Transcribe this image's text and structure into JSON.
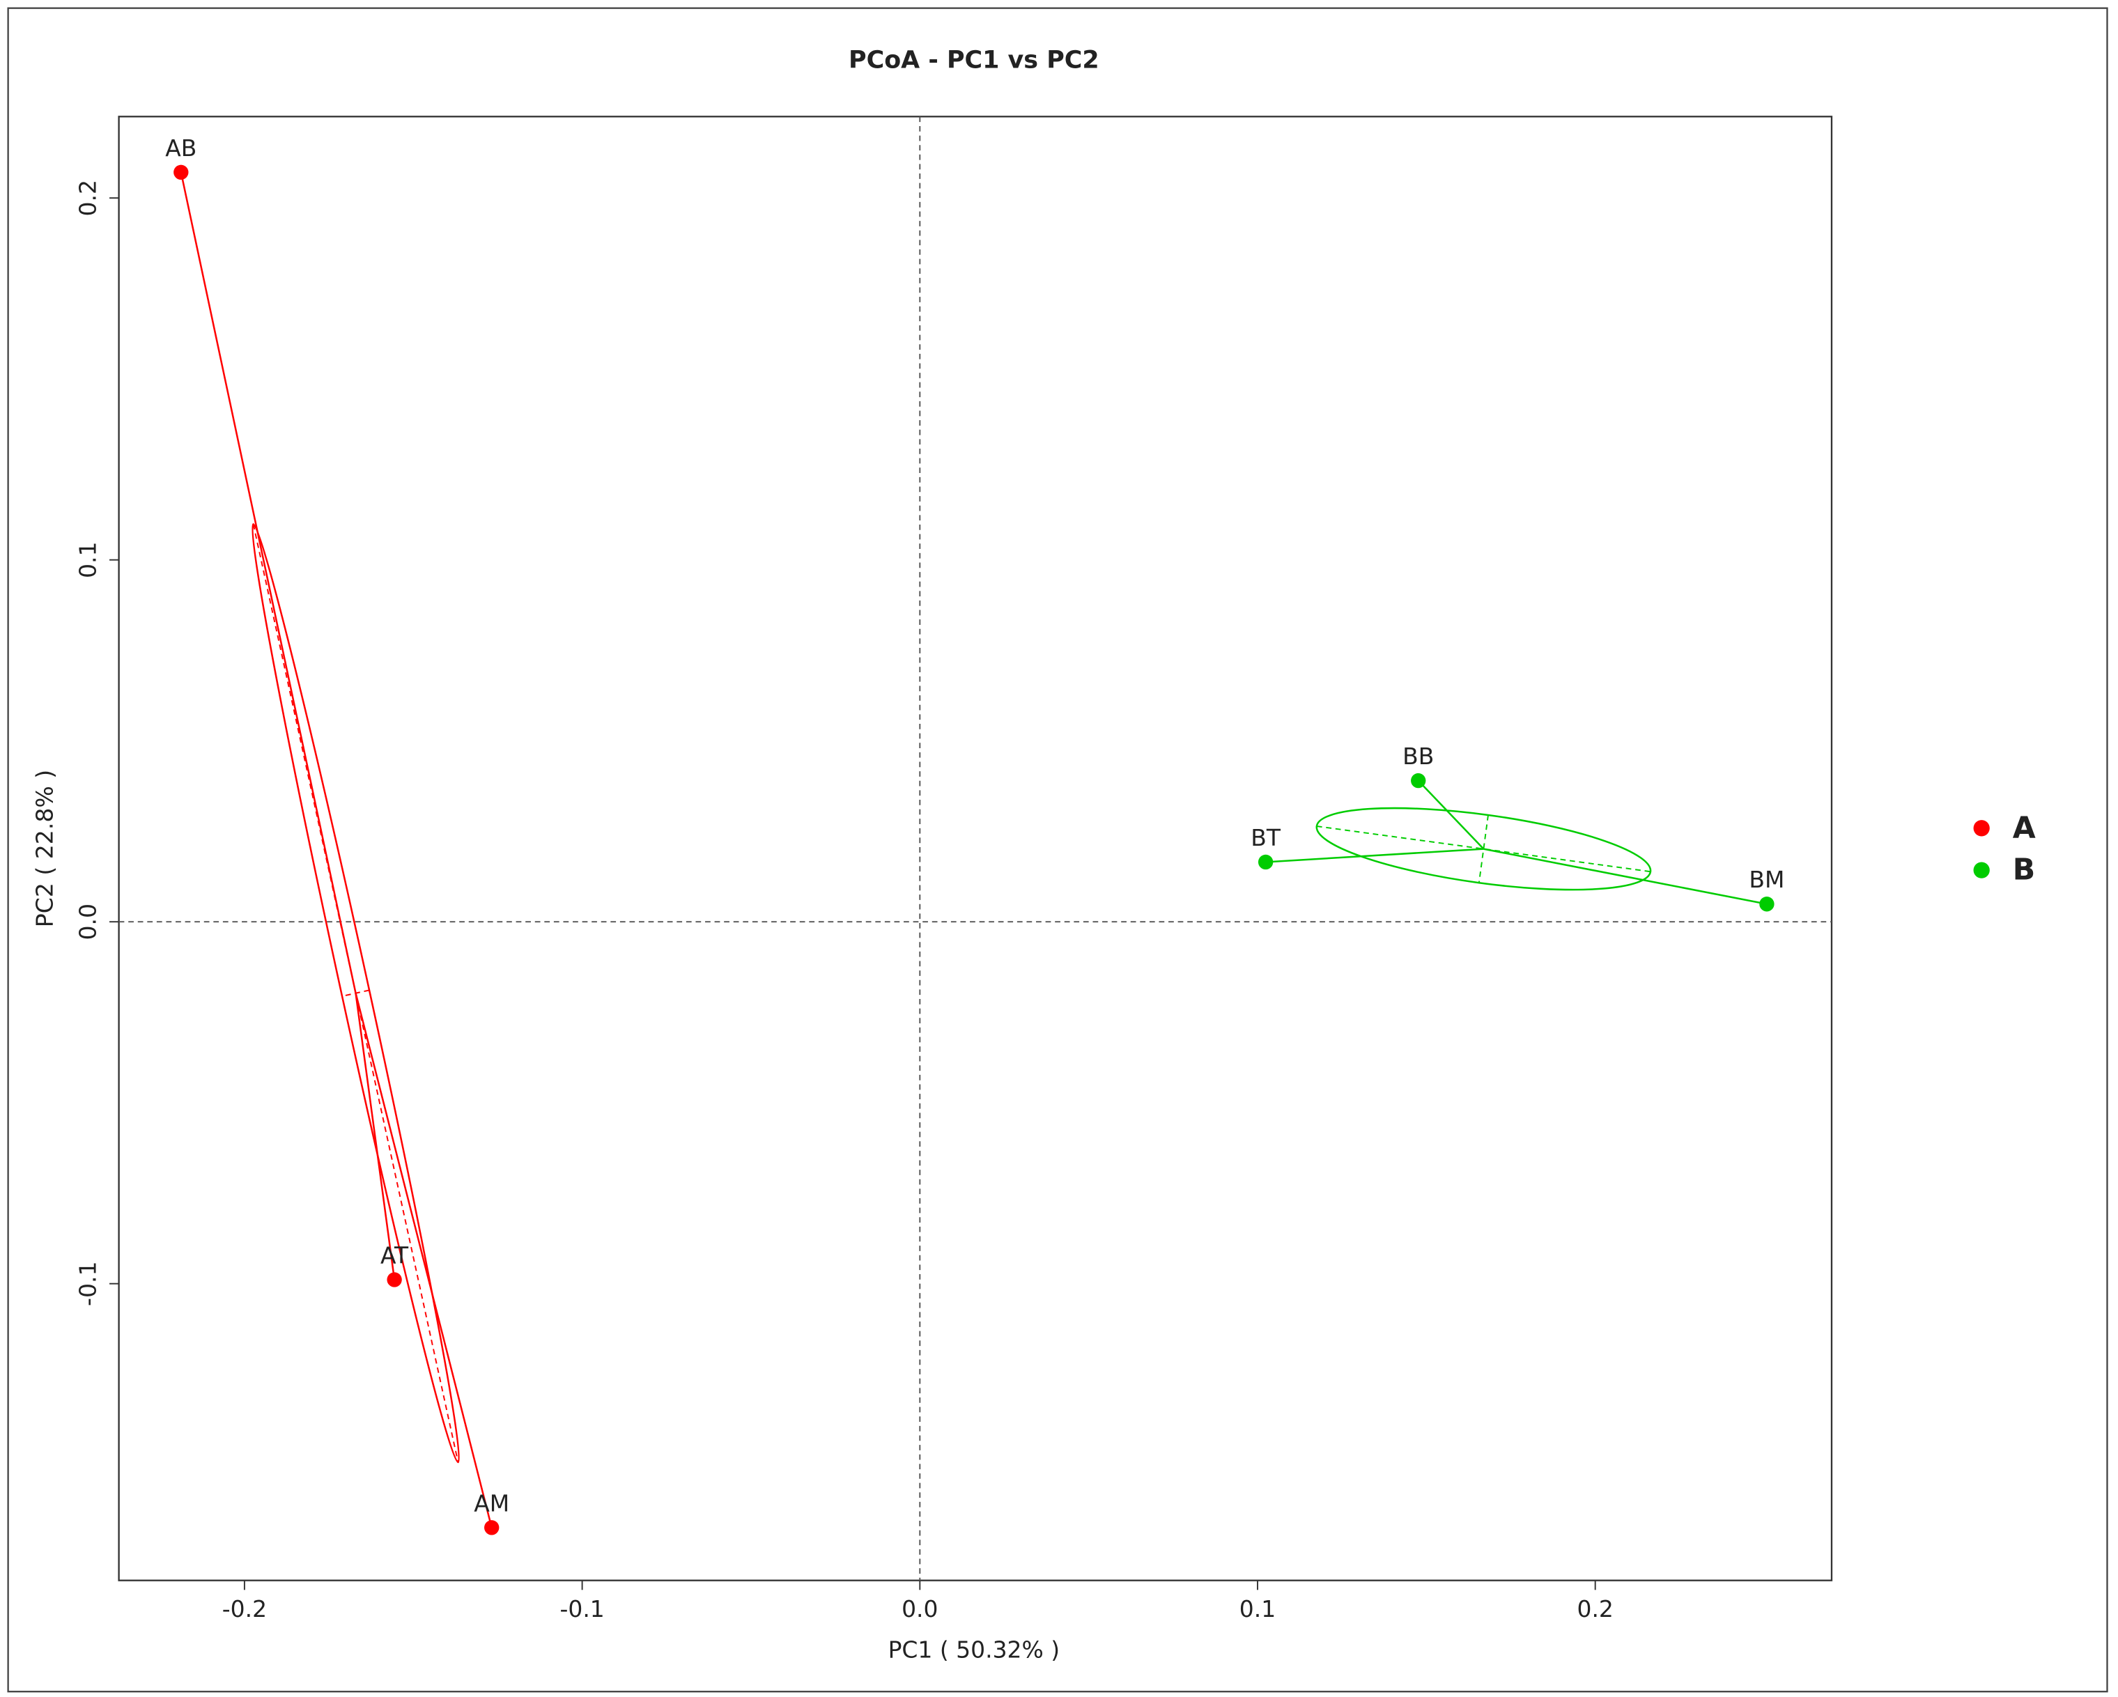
{
  "chart_data": {
    "type": "scatter",
    "title": "PCoA - PC1 vs PC2",
    "x_label": "PC1 ( 50.32% )",
    "y_label": "PC2 ( 22.8% )",
    "xlim": [
      -0.2372,
      0.27
    ],
    "ylim": [
      -0.182,
      0.2225
    ],
    "xticks": [
      -0.2,
      -0.1,
      {
        "value": 0,
        "label": "0.0"
      },
      0.1,
      0.2
    ],
    "yticks": [
      -0.1,
      {
        "value": 0,
        "label": "0.0"
      },
      0.1,
      0.2
    ],
    "reference_lines": {
      "x": 0,
      "y": 0
    },
    "ellipses": true,
    "series": [
      {
        "name": "A",
        "color": "#ff0000",
        "labels": [
          "AB",
          "AT",
          "AM"
        ],
        "x": [
          -0.2188,
          -0.1556,
          -0.1268
        ],
        "values": [
          0.2071,
          -0.0989,
          -0.1674
        ]
      },
      {
        "name": "B",
        "color": "#00cc00",
        "labels": [
          "BB",
          "BT",
          "BM"
        ],
        "x": [
          0.1476,
          0.1024,
          0.2508
        ],
        "values": [
          0.039,
          0.0165,
          0.0049
        ]
      }
    ]
  }
}
